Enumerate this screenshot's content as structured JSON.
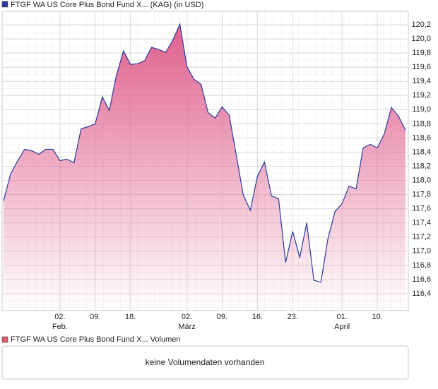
{
  "chart_data": {
    "type": "area",
    "series": [
      {
        "name": "FTGF WA US Core Plus Bond Fund X... (KAG) (in USD)",
        "color": "#2b3a9e",
        "fill": "#e0608e",
        "values": [
          117.71,
          118.09,
          118.28,
          118.44,
          118.42,
          118.37,
          118.44,
          118.44,
          118.28,
          118.3,
          118.25,
          118.73,
          118.76,
          118.8,
          119.18,
          118.99,
          119.48,
          119.83,
          119.64,
          119.65,
          119.69,
          119.88,
          119.85,
          119.81,
          119.98,
          120.21,
          119.61,
          119.43,
          119.36,
          118.96,
          118.88,
          119.04,
          118.92,
          118.36,
          117.79,
          117.58,
          118.06,
          118.26,
          117.78,
          117.74,
          116.84,
          117.28,
          116.91,
          117.4,
          116.59,
          116.56,
          117.18,
          117.56,
          117.67,
          117.92,
          117.88,
          118.46,
          118.51,
          118.46,
          118.66,
          119.03,
          118.91,
          118.71
        ]
      }
    ],
    "categories": [
      null,
      null,
      null,
      null,
      null,
      null,
      null,
      null,
      "02.",
      null,
      null,
      null,
      null,
      "09.",
      null,
      null,
      null,
      null,
      "18.",
      null,
      null,
      null,
      null,
      null,
      null,
      null,
      "02.",
      null,
      null,
      null,
      null,
      "09.",
      null,
      null,
      null,
      null,
      "16.",
      null,
      null,
      null,
      null,
      "23.",
      null,
      null,
      null,
      null,
      null,
      null,
      "01.",
      null,
      null,
      null,
      null,
      "10.",
      null,
      null,
      null,
      null
    ],
    "month_labels": [
      null,
      null,
      null,
      null,
      null,
      null,
      null,
      null,
      "Feb.",
      null,
      null,
      null,
      null,
      null,
      null,
      null,
      null,
      null,
      null,
      null,
      null,
      null,
      null,
      null,
      null,
      null,
      "März",
      null,
      null,
      null,
      null,
      null,
      null,
      null,
      null,
      null,
      null,
      null,
      null,
      null,
      null,
      null,
      null,
      null,
      null,
      null,
      null,
      null,
      "April",
      null,
      null,
      null,
      null,
      null,
      null,
      null,
      null,
      null
    ],
    "ylim": [
      116.16,
      120.39
    ],
    "yticks": [
      {
        "value": 116.4,
        "label": "116,4"
      },
      {
        "value": 116.6,
        "label": "116,6"
      },
      {
        "value": 116.8,
        "label": "116,8"
      },
      {
        "value": 117.0,
        "label": "117,0"
      },
      {
        "value": 117.2,
        "label": "117,2"
      },
      {
        "value": 117.4,
        "label": "117,4"
      },
      {
        "value": 117.6,
        "label": "117,6"
      },
      {
        "value": 117.8,
        "label": "117,8"
      },
      {
        "value": 118.0,
        "label": "118,0"
      },
      {
        "value": 118.2,
        "label": "118,2"
      },
      {
        "value": 118.4,
        "label": "118,4"
      },
      {
        "value": 118.6,
        "label": "118,6"
      },
      {
        "value": 118.8,
        "label": "118,8"
      },
      {
        "value": 119.0,
        "label": "119,0"
      },
      {
        "value": 119.2,
        "label": "119,2"
      },
      {
        "value": 119.4,
        "label": "119,4"
      },
      {
        "value": 119.6,
        "label": "119,6"
      },
      {
        "value": 119.8,
        "label": "119,8"
      },
      {
        "value": 120.0,
        "label": "120,0"
      },
      {
        "value": 120.2,
        "label": "120,2"
      }
    ],
    "grid": true
  },
  "volume_panel": {
    "legend": "FTGF WA US Core Plus Bond Fund X... Volumen",
    "color": "#e05a6a",
    "message": "keine Volumendaten vorhanden"
  }
}
